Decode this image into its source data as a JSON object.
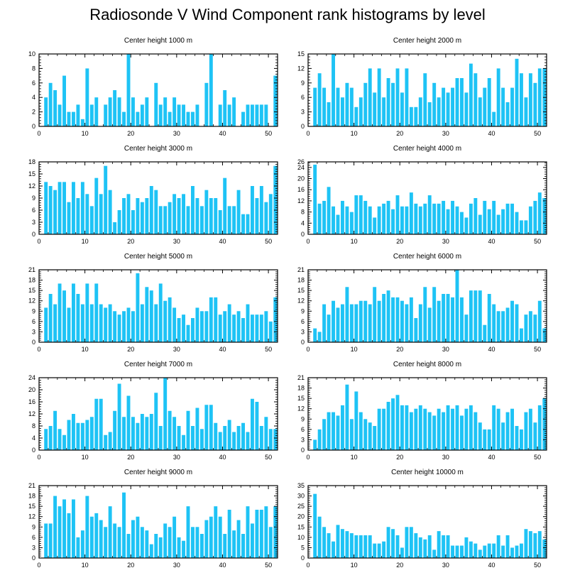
{
  "title": "Radiosonde V Wind Component rank histograms by level",
  "colors": {
    "bar": "#1ec3f5",
    "axis": "#000000"
  },
  "chart_data": [
    {
      "type": "bar",
      "title": "Center height 1000 m",
      "ylim": [
        0,
        10
      ],
      "yticks": [
        0,
        2,
        4,
        6,
        8,
        10
      ],
      "xlim": [
        0,
        52
      ],
      "xticks": [
        0,
        10,
        20,
        30,
        40,
        50
      ],
      "values": [
        0,
        4,
        6,
        5,
        3,
        7,
        2,
        2,
        3,
        1,
        8,
        3,
        4,
        0,
        3,
        4,
        5,
        4,
        2,
        10,
        4,
        2,
        3,
        4,
        0,
        6,
        3,
        4,
        2,
        4,
        3,
        3,
        2,
        2,
        3,
        0,
        6,
        10,
        0,
        3,
        5,
        3,
        4,
        0,
        2,
        3,
        3,
        3,
        3,
        3,
        0,
        7
      ]
    },
    {
      "type": "bar",
      "title": "Center height 2000 m",
      "ylim": [
        0,
        15
      ],
      "yticks": [
        0,
        3,
        6,
        9,
        12,
        15
      ],
      "xlim": [
        0,
        52
      ],
      "xticks": [
        0,
        10,
        20,
        30,
        40,
        50
      ],
      "values": [
        0,
        8,
        11,
        8,
        5,
        15,
        8,
        6,
        9,
        8,
        4,
        6,
        9,
        12,
        7,
        12,
        6,
        10,
        9,
        12,
        7,
        12,
        4,
        4,
        6,
        11,
        5,
        9,
        6,
        8,
        7,
        8,
        10,
        10,
        7,
        13,
        11,
        6,
        8,
        10,
        3,
        12,
        8,
        5,
        8,
        14,
        11,
        6,
        11,
        9,
        12,
        12
      ]
    },
    {
      "type": "bar",
      "title": "Center height 3000 m",
      "ylim": [
        0,
        18
      ],
      "yticks": [
        0,
        3,
        6,
        9,
        12,
        15,
        18
      ],
      "xlim": [
        0,
        52
      ],
      "xticks": [
        0,
        10,
        20,
        30,
        40,
        50
      ],
      "values": [
        0,
        13,
        12,
        11,
        13,
        13,
        8,
        13,
        9,
        13,
        10,
        7,
        14,
        10,
        17,
        11,
        3,
        6,
        9,
        10,
        6,
        9,
        8,
        9,
        12,
        11,
        7,
        7,
        8,
        10,
        9,
        10,
        7,
        12,
        9,
        7,
        11,
        9,
        9,
        6,
        14,
        7,
        7,
        11,
        5,
        5,
        12,
        9,
        12,
        8,
        10,
        17
      ]
    },
    {
      "type": "bar",
      "title": "Center height 4000 m",
      "ylim": [
        0,
        26
      ],
      "yticks": [
        0,
        4,
        8,
        12,
        16,
        20,
        24,
        26
      ],
      "xlim": [
        0,
        52
      ],
      "xticks": [
        0,
        10,
        20,
        30,
        40,
        50
      ],
      "values": [
        0,
        25,
        11,
        12,
        17,
        10,
        7,
        12,
        10,
        8,
        14,
        14,
        12,
        10,
        6,
        10,
        11,
        12,
        9,
        14,
        10,
        10,
        15,
        11,
        10,
        11,
        14,
        11,
        11,
        12,
        9,
        12,
        10,
        8,
        6,
        11,
        13,
        7,
        12,
        9,
        12,
        7,
        9,
        11,
        11,
        8,
        5,
        5,
        10,
        12,
        15,
        13
      ]
    },
    {
      "type": "bar",
      "title": "Center height 5000 m",
      "ylim": [
        0,
        21
      ],
      "yticks": [
        0,
        3,
        6,
        9,
        12,
        15,
        18,
        21
      ],
      "xlim": [
        0,
        52
      ],
      "xticks": [
        0,
        10,
        20,
        30,
        40,
        50
      ],
      "values": [
        0,
        10,
        14,
        11,
        17,
        15,
        10,
        17,
        14,
        11,
        17,
        11,
        17,
        11,
        10,
        11,
        9,
        8,
        9,
        10,
        9,
        20,
        11,
        16,
        15,
        11,
        17,
        12,
        13,
        10,
        7,
        8,
        5,
        7,
        10,
        9,
        9,
        13,
        13,
        8,
        9,
        11,
        8,
        9,
        7,
        11,
        8,
        8,
        8,
        9,
        6,
        13
      ]
    },
    {
      "type": "bar",
      "title": "Center height 6000 m",
      "ylim": [
        0,
        21
      ],
      "yticks": [
        0,
        3,
        6,
        9,
        12,
        15,
        18,
        21
      ],
      "xlim": [
        0,
        52
      ],
      "xticks": [
        0,
        10,
        20,
        30,
        40,
        50
      ],
      "values": [
        0,
        4,
        3,
        11,
        8,
        12,
        10,
        11,
        16,
        11,
        11,
        12,
        12,
        11,
        16,
        12,
        14,
        15,
        13,
        13,
        12,
        11,
        13,
        7,
        11,
        16,
        10,
        16,
        12,
        14,
        14,
        13,
        21,
        13,
        8,
        15,
        15,
        15,
        5,
        14,
        11,
        9,
        9,
        10,
        12,
        11,
        4,
        8,
        9,
        8,
        12,
        4
      ]
    },
    {
      "type": "bar",
      "title": "Center height 7000 m",
      "ylim": [
        0,
        24
      ],
      "yticks": [
        0,
        4,
        8,
        12,
        16,
        20,
        24
      ],
      "xlim": [
        0,
        52
      ],
      "xticks": [
        0,
        10,
        20,
        30,
        40,
        50
      ],
      "values": [
        0,
        7,
        8,
        13,
        7,
        5,
        10,
        12,
        9,
        9,
        10,
        11,
        17,
        17,
        5,
        6,
        13,
        22,
        11,
        18,
        11,
        9,
        12,
        11,
        12,
        19,
        8,
        24,
        13,
        11,
        8,
        5,
        13,
        8,
        14,
        7,
        15,
        15,
        9,
        6,
        8,
        10,
        6,
        8,
        9,
        6,
        17,
        16,
        8,
        11,
        7,
        7
      ]
    },
    {
      "type": "bar",
      "title": "Center height 8000 m",
      "ylim": [
        0,
        21
      ],
      "yticks": [
        0,
        3,
        6,
        9,
        12,
        15,
        18,
        21
      ],
      "xlim": [
        0,
        52
      ],
      "xticks": [
        0,
        10,
        20,
        30,
        40,
        50
      ],
      "values": [
        0,
        3,
        6,
        9,
        11,
        11,
        10,
        13,
        19,
        9,
        17,
        11,
        9,
        8,
        7,
        12,
        12,
        14,
        15,
        16,
        13,
        13,
        11,
        12,
        13,
        12,
        11,
        10,
        12,
        11,
        13,
        12,
        13,
        10,
        12,
        13,
        11,
        8,
        6,
        6,
        13,
        12,
        8,
        11,
        12,
        7,
        6,
        11,
        12,
        8,
        13,
        15
      ]
    },
    {
      "type": "bar",
      "title": "Center height 9000 m",
      "ylim": [
        0,
        21
      ],
      "yticks": [
        0,
        3,
        6,
        9,
        12,
        15,
        18,
        21
      ],
      "xlim": [
        0,
        52
      ],
      "xticks": [
        0,
        10,
        20,
        30,
        40,
        50
      ],
      "values": [
        0,
        10,
        10,
        18,
        15,
        17,
        13,
        17,
        6,
        8,
        18,
        12,
        13,
        11,
        9,
        15,
        10,
        9,
        19,
        7,
        11,
        12,
        9,
        8,
        4,
        7,
        6,
        10,
        9,
        12,
        6,
        5,
        15,
        9,
        9,
        7,
        11,
        12,
        15,
        12,
        7,
        14,
        8,
        11,
        7,
        15,
        10,
        14,
        14,
        15,
        9,
        15
      ]
    },
    {
      "type": "bar",
      "title": "Center height 10000 m",
      "ylim": [
        0,
        35
      ],
      "yticks": [
        0,
        5,
        10,
        15,
        20,
        25,
        30,
        35
      ],
      "xlim": [
        0,
        52
      ],
      "xticks": [
        0,
        10,
        20,
        30,
        40,
        50
      ],
      "values": [
        0,
        31,
        20,
        15,
        12,
        8,
        16,
        14,
        13,
        12,
        11,
        11,
        11,
        11,
        7,
        7,
        8,
        15,
        14,
        11,
        5,
        15,
        15,
        12,
        10,
        9,
        11,
        4,
        13,
        11,
        11,
        6,
        6,
        6,
        10,
        8,
        7,
        4,
        6,
        7,
        7,
        11,
        6,
        11,
        5,
        6,
        7,
        14,
        13,
        12,
        13,
        9
      ]
    }
  ]
}
